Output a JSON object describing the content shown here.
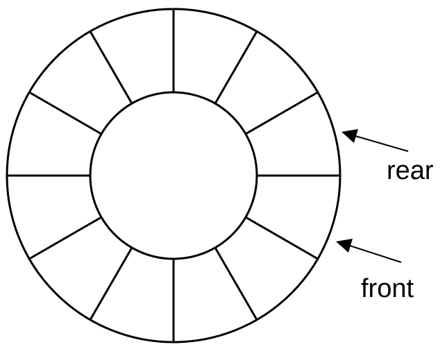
{
  "diagram": {
    "slot_count": 12,
    "line_color": "#000000",
    "background_color": "#ffffff",
    "pointers": {
      "rear": {
        "label": "rear"
      },
      "front": {
        "label": "front"
      }
    }
  }
}
